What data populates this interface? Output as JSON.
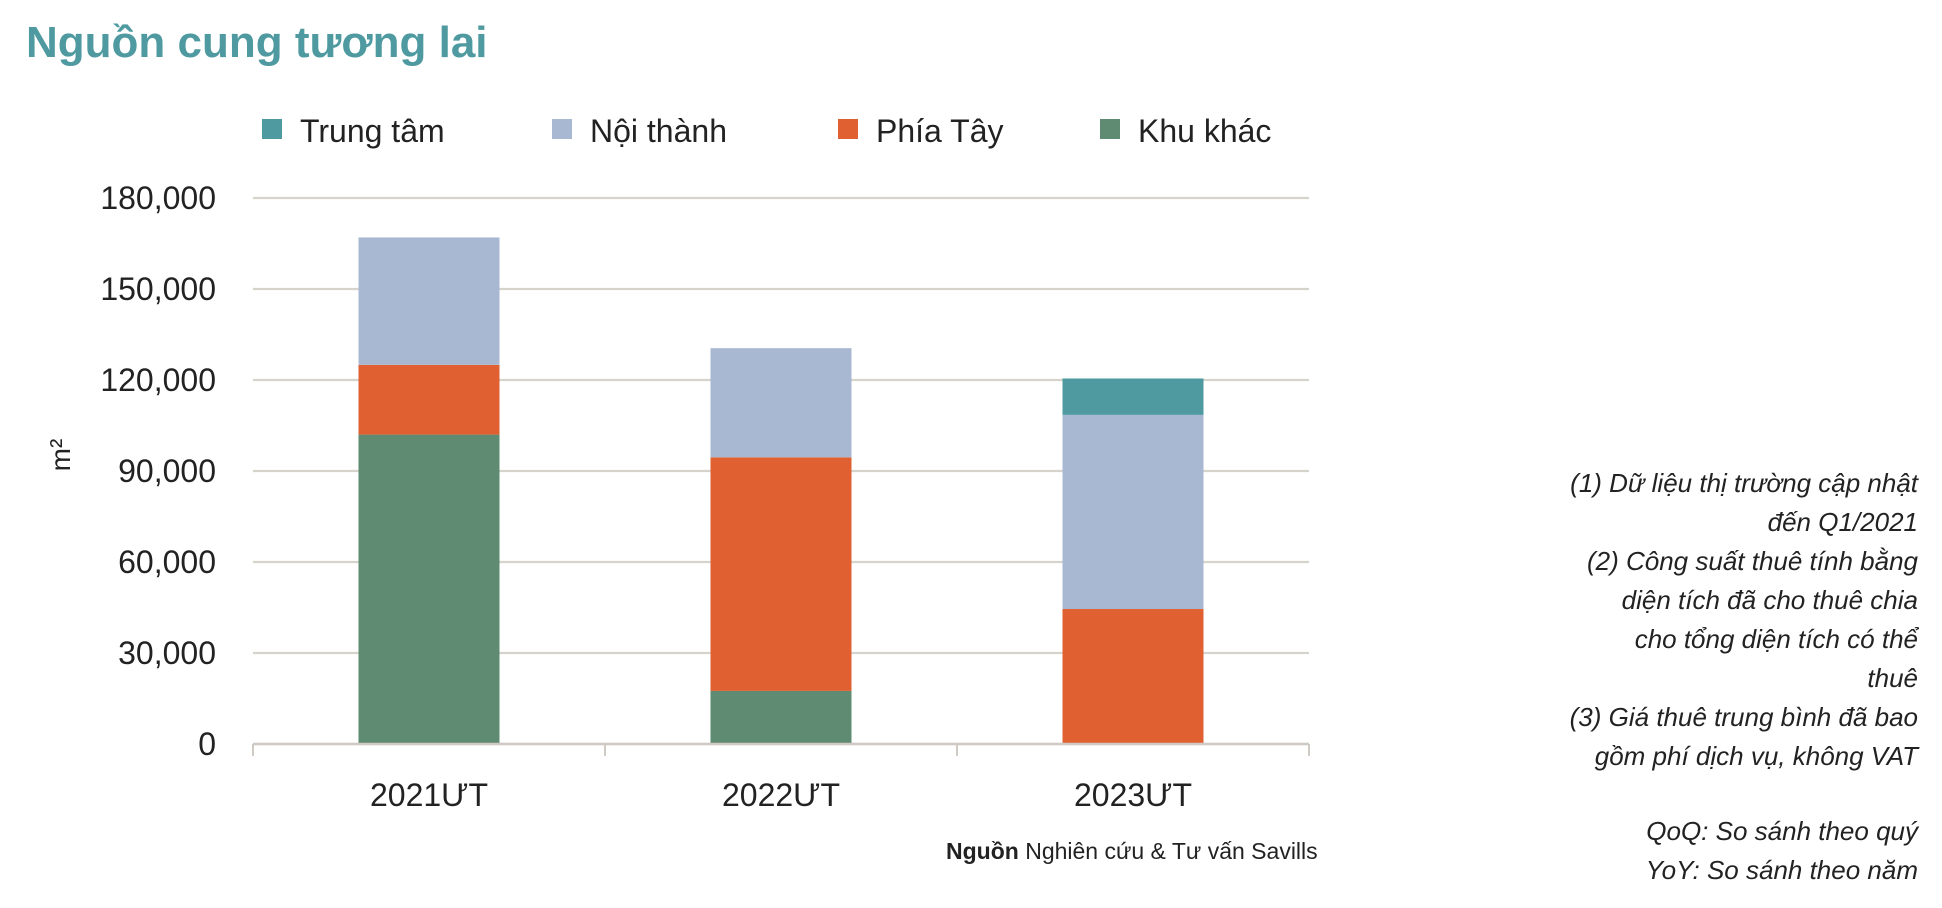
{
  "page_title": "Nguồn cung tương lai",
  "chart_data": {
    "type": "bar",
    "stacked": true,
    "categories": [
      "2021ƯT",
      "2022ƯT",
      "2023ƯT"
    ],
    "series": [
      {
        "name": "Khu khác",
        "color": "#5f8b72",
        "values": [
          102000,
          17500,
          0
        ]
      },
      {
        "name": "Phía Tây",
        "color": "#e06032",
        "values": [
          23000,
          77000,
          44500
        ]
      },
      {
        "name": "Nội thành",
        "color": "#a8b8d2",
        "values": [
          42000,
          36000,
          64000
        ]
      },
      {
        "name": "Trung tâm",
        "color": "#4e9aa0",
        "values": [
          0,
          0,
          12000
        ]
      }
    ],
    "legend_order": [
      "Trung tâm",
      "Nội thành",
      "Phía Tây",
      "Khu khác"
    ],
    "ylabel": "m²",
    "ylim": [
      0,
      180000
    ],
    "yticks": [
      "0",
      "30,000",
      "60,000",
      "90,000",
      "120,000",
      "150,000",
      "180,000"
    ],
    "grid": true,
    "legend_position": "top"
  },
  "source": {
    "label": "Nguồn",
    "text": "Nghiên cứu & Tư vấn Savills"
  },
  "notes": {
    "lines_1": [
      "(1) Dữ liệu thị trường cập nhật",
      "đến Q1/2021"
    ],
    "lines_2": [
      "(2) Công suất thuê tính bằng",
      "diện tích đã cho thuê chia",
      "cho tổng diện tích có thể",
      "thuê"
    ],
    "lines_3": [
      "(3) Giá thuê trung bình đã bao",
      "gồm phí dịch vụ, không VAT"
    ],
    "qoq": "QoQ: So sánh theo quý",
    "yoy": "YoY: So sánh theo năm"
  }
}
